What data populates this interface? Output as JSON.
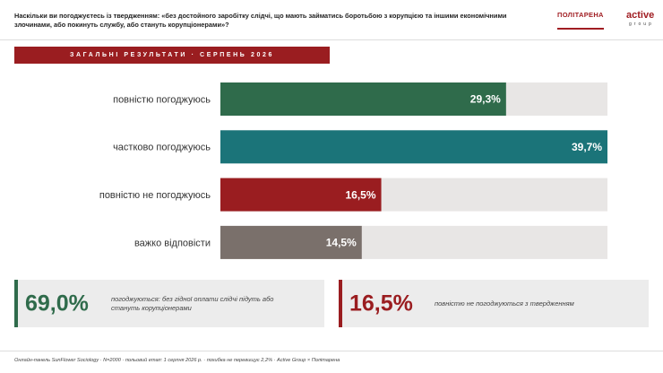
{
  "header": {
    "question": "Наскільки ви погоджуєтесь із твердженням: «без достойного заробітку слідчі, що мають займатись боротьбою з корупцією та іншими економічними злочинами, або покинуть службу, або стануть корупціонерами»?",
    "logos": [
      "ПОЛІТАРЕНА",
      "active",
      "group"
    ]
  },
  "banner": "ЗАГАЛЬНІ РЕЗУЛЬТАТИ · СЕРПЕНЬ 2026",
  "chart_data": {
    "type": "bar",
    "orientation": "horizontal",
    "categories": [
      "повністю погоджуюсь",
      "частково погоджуюсь",
      "повністю не погоджуюсь",
      "важко відповісти"
    ],
    "values": [
      29.3,
      39.7,
      16.5,
      14.5
    ],
    "value_labels": [
      "29,3%",
      "39,7%",
      "16,5%",
      "14,5%"
    ],
    "colors": [
      "#2f6b4b",
      "#1b7479",
      "#9a1d20",
      "#7a706b"
    ],
    "xlim": [
      0,
      39.7
    ]
  },
  "summary": [
    {
      "figure": "69,0%",
      "text": "погоджуються: без гідної оплати слідчі підуть або стануть корупціонерами",
      "color": "#2f6b4b"
    },
    {
      "figure": "16,5%",
      "text": "повністю не погоджуються з твердженням",
      "color": "#9a1d20"
    }
  ],
  "footer": "Онлайн-панель SunFlower Sociology · N=2000 · польовий етап: 1 серпня 2026 р. · похибка не перевищує 2,2% · Active Group × Політарена"
}
